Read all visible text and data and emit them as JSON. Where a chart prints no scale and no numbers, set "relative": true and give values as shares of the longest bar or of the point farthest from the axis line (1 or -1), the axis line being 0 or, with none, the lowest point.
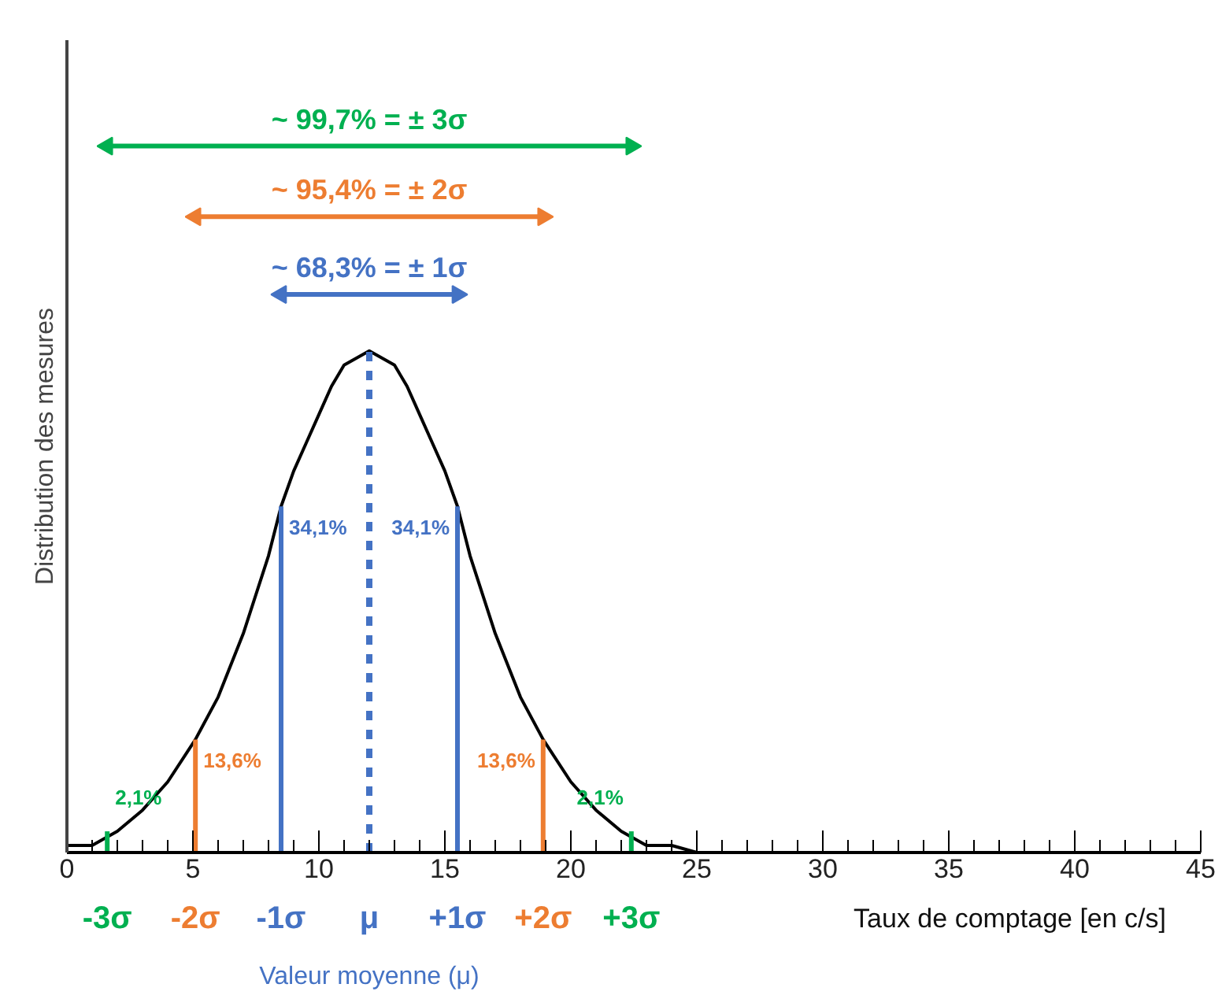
{
  "chart_data": {
    "type": "line",
    "relative": true,
    "xlabel": "Taux de comptage [en c/s]",
    "ylabel": "Distribution des mesures",
    "xlim": [
      0,
      45
    ],
    "xticks": [
      0,
      5,
      10,
      15,
      20,
      25,
      30,
      35,
      40,
      45
    ],
    "grid": false,
    "legend": false,
    "marker": "none",
    "annotations": [
      "Valeur moyenne (μ)",
      {
        "text": "2,1%",
        "x": 1.6,
        "y": 0.03
      },
      {
        "text": "13,6%",
        "x": 5.1,
        "y": 0.16
      },
      {
        "text": "34,1%",
        "x": 8.5,
        "y": 0.49
      },
      {
        "text": "34,1%",
        "x": 15.5,
        "y": 0.49
      },
      {
        "text": "13,6%",
        "x": 18.9,
        "y": 0.16
      },
      {
        "text": "2,1%",
        "x": 22.4,
        "y": 0.03
      }
    ],
    "series": [
      {
        "color": "#000000",
        "x": [
          0,
          1,
          2,
          3,
          4,
          5.1,
          6,
          7,
          8,
          8.5,
          9,
          9.5,
          10,
          10.5,
          11,
          11.5,
          12,
          12.5,
          13,
          13.5,
          14,
          14.5,
          15,
          15.5,
          16,
          17,
          18,
          18.9,
          20,
          21,
          22,
          23,
          24,
          25,
          26
        ],
        "values": [
          0.01,
          0.01,
          0.03,
          0.06,
          0.1,
          0.16,
          0.22,
          0.31,
          0.42,
          0.49,
          0.54,
          0.58,
          0.62,
          0.66,
          0.69,
          0.7,
          0.71,
          0.7,
          0.69,
          0.66,
          0.62,
          0.58,
          0.54,
          0.49,
          0.42,
          0.31,
          0.22,
          0.16,
          0.1,
          0.06,
          0.03,
          0.01,
          0.01,
          0,
          0
        ]
      },
      {
        "name": "-3σ",
        "color": "#00b050",
        "x": [
          1.6,
          1.6
        ],
        "values": [
          0,
          0.03
        ]
      },
      {
        "name": "-2σ",
        "color": "#ed7d31",
        "x": [
          5.1,
          5.1
        ],
        "values": [
          0,
          0.16
        ]
      },
      {
        "name": "-1σ",
        "color": "#4472c4",
        "x": [
          8.5,
          8.5
        ],
        "values": [
          0,
          0.49
        ]
      },
      {
        "name": "μ",
        "color": "#4472c4",
        "x": [
          12,
          12
        ],
        "values": [
          0,
          0.71
        ],
        "line_style": "dashed"
      },
      {
        "name": "+1σ",
        "color": "#4472c4",
        "x": [
          15.5,
          15.5
        ],
        "values": [
          0,
          0.49
        ]
      },
      {
        "name": "+2σ",
        "color": "#ed7d31",
        "x": [
          18.9,
          18.9
        ],
        "values": [
          0,
          0.16
        ]
      },
      {
        "name": "+3σ",
        "color": "#00b050",
        "x": [
          22.4,
          22.4
        ],
        "values": [
          0,
          0.03
        ]
      },
      {
        "name": "~ 99,7% = ± 3σ",
        "color": "#00b050",
        "x": [
          1.6,
          22.4
        ],
        "values": [
          1,
          1
        ],
        "marker": "triangle"
      },
      {
        "name": "~ 95,4% = ± 2σ",
        "color": "#ed7d31",
        "x": [
          5.1,
          18.9
        ],
        "values": [
          0.9,
          0.9
        ],
        "marker": "triangle"
      },
      {
        "name": "~ 68,3% = ± 1σ",
        "color": "#4472c4",
        "x": [
          8.5,
          15.5
        ],
        "values": [
          0.79,
          0.79
        ],
        "marker": "triangle"
      }
    ]
  }
}
